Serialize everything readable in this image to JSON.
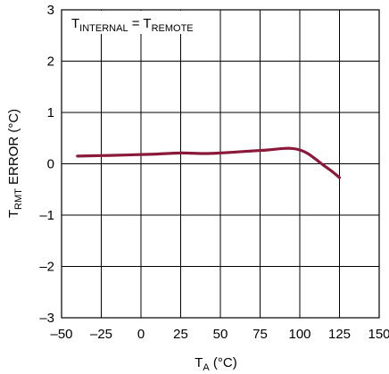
{
  "chart_data": {
    "type": "line",
    "xlabel": {
      "main": "T",
      "sub": "A",
      "unit": " (°C)"
    },
    "ylabel": {
      "main": "T",
      "sub": "RMT",
      "unit": " ERROR (°C)"
    },
    "annotation": {
      "a": "T",
      "a_sub": "INTERNAL",
      "eq": " = ",
      "b": "T",
      "b_sub": "REMOTE"
    },
    "xlim": [
      -50,
      150
    ],
    "ylim": [
      -3,
      3
    ],
    "xticks": [
      -50,
      -25,
      0,
      25,
      50,
      75,
      100,
      125,
      150
    ],
    "yticks": [
      -3,
      -2,
      -1,
      0,
      1,
      2,
      3
    ],
    "xtick_labels": [
      "–50",
      "–25",
      "0",
      "25",
      "50",
      "75",
      "100",
      "125",
      "150"
    ],
    "ytick_labels": [
      "–3",
      "–2",
      "–1",
      "0",
      "1",
      "2",
      "3"
    ],
    "grid": true,
    "line_color": "#8b1a3a",
    "series": [
      {
        "x": [
          -40,
          -25,
          -10,
          0,
          10,
          25,
          40,
          50,
          60,
          70,
          80,
          90,
          95,
          100,
          105,
          110,
          115,
          120,
          125
        ],
        "y": [
          0.15,
          0.16,
          0.17,
          0.18,
          0.19,
          0.21,
          0.2,
          0.21,
          0.23,
          0.25,
          0.27,
          0.3,
          0.3,
          0.27,
          0.2,
          0.09,
          -0.03,
          -0.14,
          -0.27
        ]
      }
    ]
  }
}
